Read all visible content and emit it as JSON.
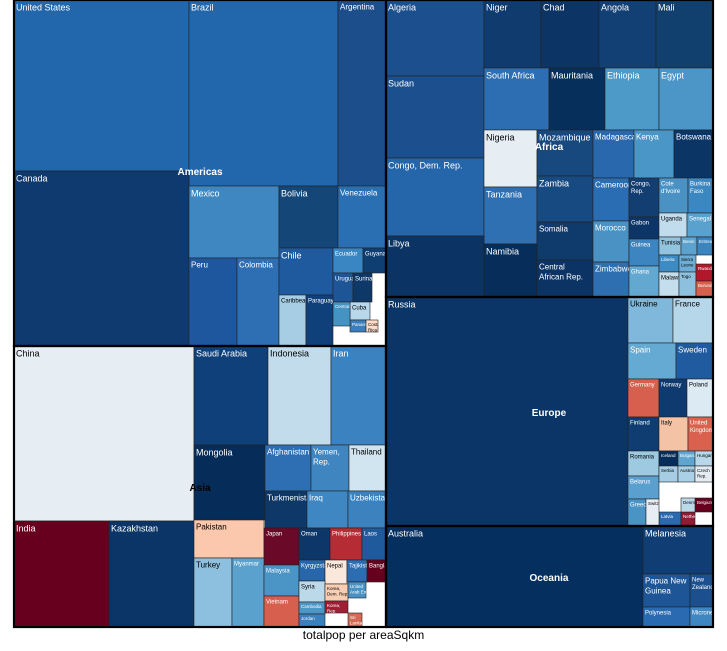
{
  "chart_data": {
    "type": "treemap",
    "caption": "totalpop per areaSqkm",
    "color_scale": {
      "low": "#67001f",
      "light_low": "#fddbc7",
      "mid": "#f2f5f8",
      "light_high": "#a6cde3",
      "high": "#053061"
    },
    "groups": [
      {
        "name": "Americas",
        "items": [
          {
            "label": "United States",
            "color": "#2266ac"
          },
          {
            "label": "Brazil",
            "color": "#2266ac"
          },
          {
            "label": "Argentina",
            "color": "#1d4e8c"
          },
          {
            "label": "Canada",
            "color": "#0e3a70"
          },
          {
            "label": "Mexico",
            "color": "#3f87c0"
          },
          {
            "label": "Bolivia",
            "color": "#144677"
          },
          {
            "label": "Venezuela",
            "color": "#2a6fb1"
          },
          {
            "label": "Peru",
            "color": "#1e579d"
          },
          {
            "label": "Colombia",
            "color": "#2e6eb2"
          },
          {
            "label": "Chile",
            "color": "#1f5a9f"
          },
          {
            "label": "Ecuador",
            "color": "#3a86c2"
          },
          {
            "label": "Guyana",
            "color": "#0f3e73"
          },
          {
            "label": "Uruguay",
            "color": "#1e5597"
          },
          {
            "label": "Suriname",
            "color": "#0d3868"
          },
          {
            "label": "Caribbean",
            "color": "#a6cde3"
          },
          {
            "label": "Paraguay",
            "color": "#10407a"
          },
          {
            "label": "Cuba",
            "color": "#b7d7ea"
          },
          {
            "label": "Panama",
            "color": "#3a7fbc"
          },
          {
            "label": "Costa Rica",
            "color": "#fddbc7"
          },
          {
            "label": "Central America",
            "color": "#4393c3"
          }
        ]
      },
      {
        "name": "Africa",
        "items": [
          {
            "label": "Algeria",
            "color": "#1b4f8d"
          },
          {
            "label": "Niger",
            "color": "#0f3b6f"
          },
          {
            "label": "Chad",
            "color": "#0c3565"
          },
          {
            "label": "Angola",
            "color": "#123f74"
          },
          {
            "label": "Mali",
            "color": "#11406f"
          },
          {
            "label": "Sudan",
            "color": "#1c4f8d"
          },
          {
            "label": "South Africa",
            "color": "#2d6eb3"
          },
          {
            "label": "Mauritania",
            "color": "#062f5c"
          },
          {
            "label": "Ethiopia",
            "color": "#4d99c8"
          },
          {
            "label": "Egypt",
            "color": "#4b96c6"
          },
          {
            "label": "Congo, Dem. Rep.",
            "color": "#2565a9"
          },
          {
            "label": "Nigeria",
            "color": "#e6eef4"
          },
          {
            "label": "Mozambique",
            "color": "#17497f"
          },
          {
            "label": "Madagascar",
            "color": "#2a68ad"
          },
          {
            "label": "Kenya",
            "color": "#4a96c6"
          },
          {
            "label": "Botswana",
            "color": "#0a3565"
          },
          {
            "label": "Tanzania",
            "color": "#2f70b3"
          },
          {
            "label": "Zambia",
            "color": "#184a82"
          },
          {
            "label": "Cameroon",
            "color": "#2b6db2"
          },
          {
            "label": "Congo, Rep.",
            "color": "#123e72"
          },
          {
            "label": "Cote d'Ivoire",
            "color": "#4a92c4"
          },
          {
            "label": "Burkina Faso",
            "color": "#3b87c1"
          },
          {
            "label": "Libya",
            "color": "#0b3464"
          },
          {
            "label": "Somalia",
            "color": "#0f3a6c"
          },
          {
            "label": "Morocco",
            "color": "#4a92c4"
          },
          {
            "label": "Gabon",
            "color": "#0d3567"
          },
          {
            "label": "Uganda",
            "color": "#c1dcec"
          },
          {
            "label": "Senegal",
            "color": "#5aa1cd"
          },
          {
            "label": "Namibia",
            "color": "#072e5a"
          },
          {
            "label": "Central African Rep.",
            "color": "#0b3465"
          },
          {
            "label": "Zimbabwe",
            "color": "#2e6fb2"
          },
          {
            "label": "Guinea",
            "color": "#3d85c0"
          },
          {
            "label": "Tunisia",
            "color": "#92c4df"
          },
          {
            "label": "Benin",
            "color": "#5ba2cf"
          },
          {
            "label": "Eritrea",
            "color": "#3a84c0"
          },
          {
            "label": "Ghana",
            "color": "#62a8d1"
          },
          {
            "label": "Liberia",
            "color": "#3e8ac2"
          },
          {
            "label": "Sierra Leone",
            "color": "#6eadd4"
          },
          {
            "label": "Malawi",
            "color": "#c4deed"
          },
          {
            "label": "Togo",
            "color": "#8cc0dd"
          },
          {
            "label": "Rwanda",
            "color": "#b2182b"
          },
          {
            "label": "Burundi",
            "color": "#d6604d"
          }
        ]
      },
      {
        "name": "Asia",
        "items": [
          {
            "label": "China",
            "color": "#e6eef4"
          },
          {
            "label": "Saudi Arabia",
            "color": "#10407a"
          },
          {
            "label": "Indonesia",
            "color": "#c2dcec"
          },
          {
            "label": "Iran",
            "color": "#3b83c0"
          },
          {
            "label": "Mongolia",
            "color": "#062d59"
          },
          {
            "label": "Afghanistan",
            "color": "#2e6eb2"
          },
          {
            "label": "Yemen, Rep.",
            "color": "#3f85bf"
          },
          {
            "label": "Thailand",
            "color": "#d1e5f0"
          },
          {
            "label": "Turkmenistan",
            "color": "#0d3868"
          },
          {
            "label": "Iraq",
            "color": "#3f87c2"
          },
          {
            "label": "Uzbekistan",
            "color": "#3b82bf"
          },
          {
            "label": "India",
            "color": "#67001f"
          },
          {
            "label": "Kazakhstan",
            "color": "#0b3567"
          },
          {
            "label": "Pakistan",
            "color": "#fbc8ad"
          },
          {
            "label": "Japan",
            "color": "#6a0a28"
          },
          {
            "label": "Oman",
            "color": "#0d3768"
          },
          {
            "label": "Philippines",
            "color": "#b52c34"
          },
          {
            "label": "Laos",
            "color": "#1f5a9c"
          },
          {
            "label": "Turkey",
            "color": "#8cc0de"
          },
          {
            "label": "Myanmar",
            "color": "#5aa1cd"
          },
          {
            "label": "Malaysia",
            "color": "#4b94c6"
          },
          {
            "label": "Kyrgyzstan",
            "color": "#2766aa"
          },
          {
            "label": "Nepal",
            "color": "#fbe8dc"
          },
          {
            "label": "Tajikistan",
            "color": "#2c6cb0"
          },
          {
            "label": "Vietnam",
            "color": "#d6604d"
          },
          {
            "label": "Syria",
            "color": "#bcd9ea"
          },
          {
            "label": "Korea, Dem. Rep.",
            "color": "#f7cdb4"
          },
          {
            "label": "Sri Lanka",
            "color": "#d46a55"
          },
          {
            "label": "Cambodia",
            "color": "#4d97c7"
          },
          {
            "label": "Jordan",
            "color": "#3a80bd"
          },
          {
            "label": "Korea, Rep.",
            "color": "#a01e34"
          },
          {
            "label": "United Arab Emirates",
            "color": "#4a92c4"
          },
          {
            "label": "Bangladesh",
            "color": "#67001f"
          }
        ]
      },
      {
        "name": "Europe",
        "items": [
          {
            "label": "Russia",
            "color": "#0a3566"
          },
          {
            "label": "Ukraine",
            "color": "#7fb8da"
          },
          {
            "label": "France",
            "color": "#b6d6e9"
          },
          {
            "label": "Spain",
            "color": "#65aad3"
          },
          {
            "label": "Sweden",
            "color": "#1f5b9e"
          },
          {
            "label": "Germany",
            "color": "#d6604d"
          },
          {
            "label": "Norway",
            "color": "#0e3a6f"
          },
          {
            "label": "Poland",
            "color": "#dceaf3"
          },
          {
            "label": "Finland",
            "color": "#0f3d72"
          },
          {
            "label": "Italy",
            "color": "#f4c3a6"
          },
          {
            "label": "United Kingdom",
            "color": "#d9614d"
          },
          {
            "label": "Romania",
            "color": "#9dcae1"
          },
          {
            "label": "Iceland",
            "color": "#062d59"
          },
          {
            "label": "Bulgaria",
            "color": "#5fa5d0"
          },
          {
            "label": "Hungary",
            "color": "#b8d8ea"
          },
          {
            "label": "Belarus",
            "color": "#5a9fcd"
          },
          {
            "label": "Serbia",
            "color": "#a6cde3"
          },
          {
            "label": "Austria",
            "color": "#aad0e5"
          },
          {
            "label": "Czech Rep.",
            "color": "#e3ecf3"
          },
          {
            "label": "Greece",
            "color": "#4a93c5"
          },
          {
            "label": "Latvia",
            "color": "#2c6ab0"
          },
          {
            "label": "Belgium",
            "color": "#67001f"
          },
          {
            "label": "Netherlands",
            "color": "#8f1b34"
          },
          {
            "label": "Switzerland",
            "color": "#e7edf3"
          },
          {
            "label": "Denmark",
            "color": "#bcd9ea"
          }
        ]
      },
      {
        "name": "Oceania",
        "items": [
          {
            "label": "Australia",
            "color": "#052f5e"
          },
          {
            "label": "Melanesia",
            "color": "#103e74"
          },
          {
            "label": "Papua New Guinea",
            "color": "#1e5597"
          },
          {
            "label": "New Zealand",
            "color": "#1b4f8d"
          },
          {
            "label": "Polynesia",
            "color": "#2a6ab0"
          },
          {
            "label": "Micronesia",
            "color": "#3f87c2"
          }
        ]
      }
    ]
  }
}
